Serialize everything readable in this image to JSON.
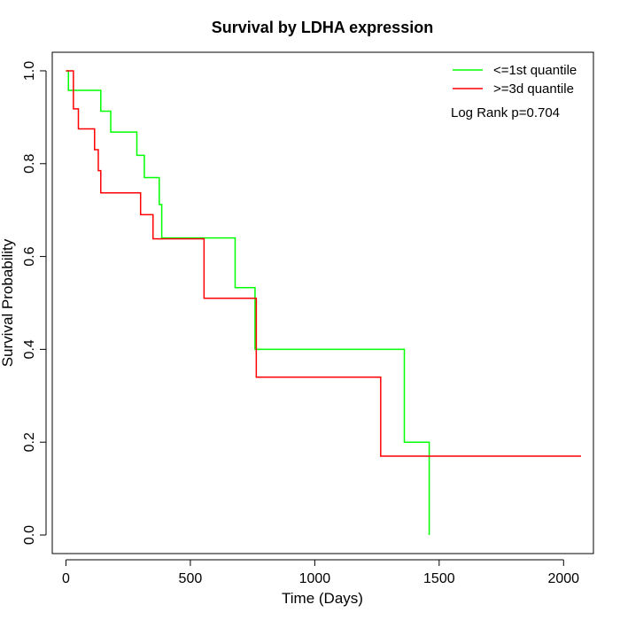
{
  "chart_data": {
    "type": "line",
    "title": "Survival by LDHA expression",
    "xlabel": "Time (Days)",
    "ylabel": "Survival Probability",
    "xlim": [
      -55,
      2120
    ],
    "ylim": [
      -0.04,
      1.04
    ],
    "xticks": [
      0,
      500,
      1000,
      1500,
      2000
    ],
    "yticks": [
      0.0,
      0.2,
      0.4,
      0.6,
      0.8,
      1.0
    ],
    "xtick_labels": [
      "0",
      "500",
      "1000",
      "1500",
      "2000"
    ],
    "ytick_labels": [
      "0.0",
      "0.2",
      "0.4",
      "0.6",
      "0.8",
      "1.0"
    ],
    "legend_position": "top-right",
    "annotation": "Log Rank p=0.704",
    "series": [
      {
        "name": "<=1st quantile",
        "color": "#00ff00",
        "steps": [
          [
            0,
            1.0
          ],
          [
            10,
            0.958
          ],
          [
            140,
            0.913
          ],
          [
            180,
            0.868
          ],
          [
            285,
            0.818
          ],
          [
            315,
            0.77
          ],
          [
            375,
            0.712
          ],
          [
            385,
            0.64
          ],
          [
            680,
            0.533
          ],
          [
            760,
            0.4
          ],
          [
            1360,
            0.2
          ],
          [
            1460,
            0.0
          ]
        ],
        "end_x": 1460
      },
      {
        "name": ">=3d quantile",
        "color": "#ff0000",
        "steps": [
          [
            0,
            1.0
          ],
          [
            30,
            0.918
          ],
          [
            50,
            0.875
          ],
          [
            115,
            0.83
          ],
          [
            130,
            0.785
          ],
          [
            140,
            0.737
          ],
          [
            300,
            0.69
          ],
          [
            350,
            0.638
          ],
          [
            555,
            0.51
          ],
          [
            765,
            0.34
          ],
          [
            1265,
            0.17
          ]
        ],
        "end_x": 2070
      }
    ]
  }
}
